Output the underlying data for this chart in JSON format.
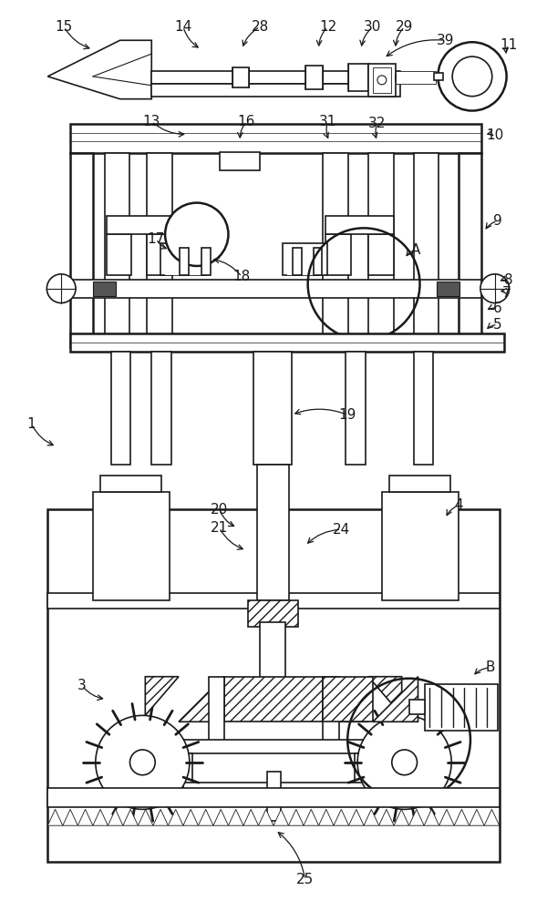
{
  "bg_color": "#ffffff",
  "line_color": "#1a1a1a",
  "fig_width": 6.0,
  "fig_height": 10.0
}
